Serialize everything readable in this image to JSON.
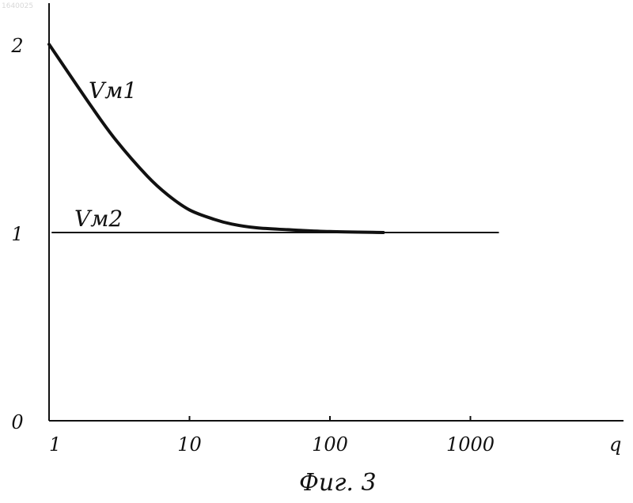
{
  "watermark": "1640025",
  "caption": "Фuг. 3",
  "chart_data": {
    "type": "line",
    "x_scale": "log",
    "xlim": [
      1,
      3000
    ],
    "ylim": [
      0,
      2.1
    ],
    "xlabel": "q",
    "ylabel": "",
    "x_ticks": [
      {
        "value": 1,
        "label": "1"
      },
      {
        "value": 10,
        "label": "10"
      },
      {
        "value": 100,
        "label": "100"
      },
      {
        "value": 1000,
        "label": "1000"
      }
    ],
    "y_ticks": [
      {
        "value": 0,
        "label": "0"
      },
      {
        "value": 1,
        "label": "1"
      },
      {
        "value": 2,
        "label": "2"
      }
    ],
    "grid": false,
    "legend": "none",
    "series": [
      {
        "name": "Vм1",
        "line_weight": "bold",
        "x": [
          1,
          2,
          3,
          5,
          7,
          10,
          15,
          20,
          30,
          50,
          100,
          240
        ],
        "y": [
          2.0,
          1.67,
          1.49,
          1.3,
          1.2,
          1.12,
          1.07,
          1.045,
          1.025,
          1.015,
          1.005,
          1.0
        ]
      },
      {
        "name": "Vм2",
        "line_weight": "thin",
        "x": [
          1,
          1500
        ],
        "y": [
          1.0,
          1.0
        ]
      }
    ]
  }
}
